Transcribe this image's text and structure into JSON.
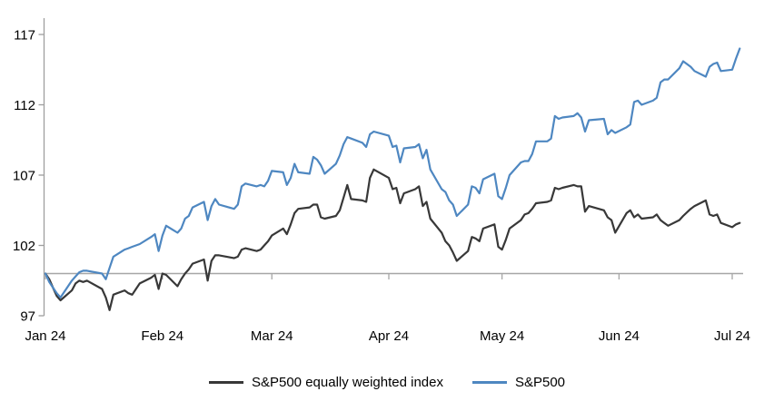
{
  "chart_data": {
    "type": "line",
    "title": "",
    "grid": "off",
    "legend_position": "bottom",
    "background_color": "#ffffff",
    "axis_color": "#9f9f9f",
    "baseline_color": "#a6a6a6",
    "x_axis": {
      "tick_labels": [
        "Jan 24",
        "Feb 24",
        "Mar 24",
        "Apr 24",
        "May 24",
        "Jun 24",
        "Jul 24"
      ],
      "tick_day_offsets": [
        0,
        31,
        60,
        91,
        121,
        152,
        182
      ],
      "total_days": 182
    },
    "y_axis": {
      "ticks": [
        97,
        102,
        107,
        112,
        117
      ],
      "baseline_value": 100,
      "range": [
        97,
        118.3
      ]
    },
    "day_offsets": [
      0,
      1,
      2,
      3,
      4,
      7,
      8,
      9,
      10,
      11,
      15,
      16,
      17,
      18,
      21,
      22,
      23,
      24,
      25,
      28,
      29,
      30,
      31,
      32,
      35,
      36,
      37,
      38,
      39,
      42,
      43,
      44,
      45,
      46,
      50,
      51,
      52,
      53,
      56,
      57,
      58,
      59,
      60,
      63,
      64,
      65,
      66,
      67,
      70,
      71,
      72,
      73,
      74,
      77,
      78,
      79,
      80,
      81,
      84,
      85,
      86,
      87,
      91,
      92,
      93,
      94,
      95,
      98,
      99,
      100,
      101,
      102,
      105,
      106,
      107,
      108,
      109,
      112,
      113,
      114,
      115,
      116,
      119,
      120,
      121,
      122,
      123,
      126,
      127,
      128,
      129,
      130,
      133,
      134,
      135,
      136,
      137,
      140,
      141,
      142,
      143,
      144,
      148,
      149,
      150,
      151,
      154,
      155,
      156,
      157,
      158,
      161,
      162,
      163,
      164,
      165,
      168,
      169,
      171,
      172,
      175,
      176,
      177,
      178,
      179,
      182,
      183,
      184
    ],
    "series": [
      {
        "name": "S&P500 equally weighted index",
        "color": "#383838",
        "values": [
          100.0,
          99.6,
          99.0,
          98.4,
          98.1,
          98.8,
          99.3,
          99.5,
          99.4,
          99.5,
          98.9,
          98.3,
          97.4,
          98.5,
          98.8,
          98.6,
          98.5,
          98.9,
          99.3,
          99.7,
          99.9,
          98.9,
          100.0,
          99.9,
          99.1,
          99.6,
          100.0,
          100.3,
          100.7,
          101.0,
          99.5,
          100.9,
          101.3,
          101.3,
          101.1,
          101.2,
          101.7,
          101.8,
          101.6,
          101.7,
          102.0,
          102.3,
          102.7,
          103.2,
          102.8,
          103.5,
          104.3,
          104.6,
          104.7,
          104.9,
          104.9,
          104.0,
          103.9,
          104.1,
          104.5,
          105.4,
          106.3,
          105.3,
          105.2,
          105.1,
          106.8,
          107.4,
          106.8,
          106.0,
          106.1,
          105.0,
          105.7,
          106.0,
          106.2,
          104.8,
          105.1,
          103.9,
          102.9,
          102.3,
          102.0,
          101.5,
          100.9,
          101.6,
          102.6,
          102.5,
          102.3,
          103.2,
          103.5,
          101.9,
          101.7,
          102.4,
          103.2,
          103.8,
          104.2,
          104.3,
          104.6,
          105.0,
          105.1,
          105.2,
          106.1,
          106.0,
          106.1,
          106.3,
          106.2,
          106.2,
          104.4,
          104.8,
          104.5,
          104.0,
          103.8,
          102.9,
          104.3,
          104.5,
          104.0,
          104.2,
          103.9,
          104.0,
          104.2,
          103.8,
          103.6,
          103.4,
          103.8,
          104.1,
          104.6,
          104.8,
          105.2,
          104.2,
          104.1,
          104.2,
          103.6,
          103.3,
          103.5,
          103.6
        ]
      },
      {
        "name": "S&P500",
        "color": "#4e87c1",
        "values": [
          100.0,
          99.4,
          99.0,
          98.6,
          98.3,
          99.5,
          99.8,
          100.1,
          100.2,
          100.2,
          100.0,
          99.6,
          100.4,
          101.2,
          101.7,
          101.8,
          101.9,
          102.0,
          102.1,
          102.6,
          102.8,
          101.6,
          102.7,
          103.4,
          102.9,
          103.2,
          103.9,
          104.1,
          104.7,
          105.1,
          103.8,
          104.8,
          105.3,
          104.9,
          104.6,
          104.9,
          106.2,
          106.4,
          106.2,
          106.3,
          106.2,
          106.6,
          107.3,
          107.2,
          106.3,
          106.8,
          107.8,
          107.2,
          107.1,
          108.3,
          108.1,
          107.7,
          107.1,
          107.8,
          108.4,
          109.2,
          109.7,
          109.6,
          109.3,
          109.0,
          109.9,
          110.1,
          109.8,
          109.0,
          109.1,
          107.9,
          108.9,
          109.0,
          109.2,
          108.2,
          108.8,
          107.4,
          106.0,
          105.8,
          105.2,
          104.9,
          104.1,
          104.9,
          106.2,
          106.1,
          105.7,
          106.7,
          107.1,
          105.5,
          105.3,
          106.1,
          107.0,
          107.9,
          108.0,
          108.0,
          108.5,
          109.4,
          109.4,
          109.6,
          111.2,
          111.0,
          111.1,
          111.2,
          111.4,
          111.1,
          110.1,
          110.9,
          111.0,
          109.9,
          110.2,
          110.0,
          110.4,
          110.6,
          112.2,
          112.3,
          112.0,
          112.3,
          112.5,
          113.6,
          113.8,
          113.8,
          114.6,
          115.1,
          114.7,
          114.4,
          114.0,
          114.7,
          114.9,
          115.0,
          114.4,
          114.5,
          115.3,
          116.0
        ]
      }
    ]
  }
}
